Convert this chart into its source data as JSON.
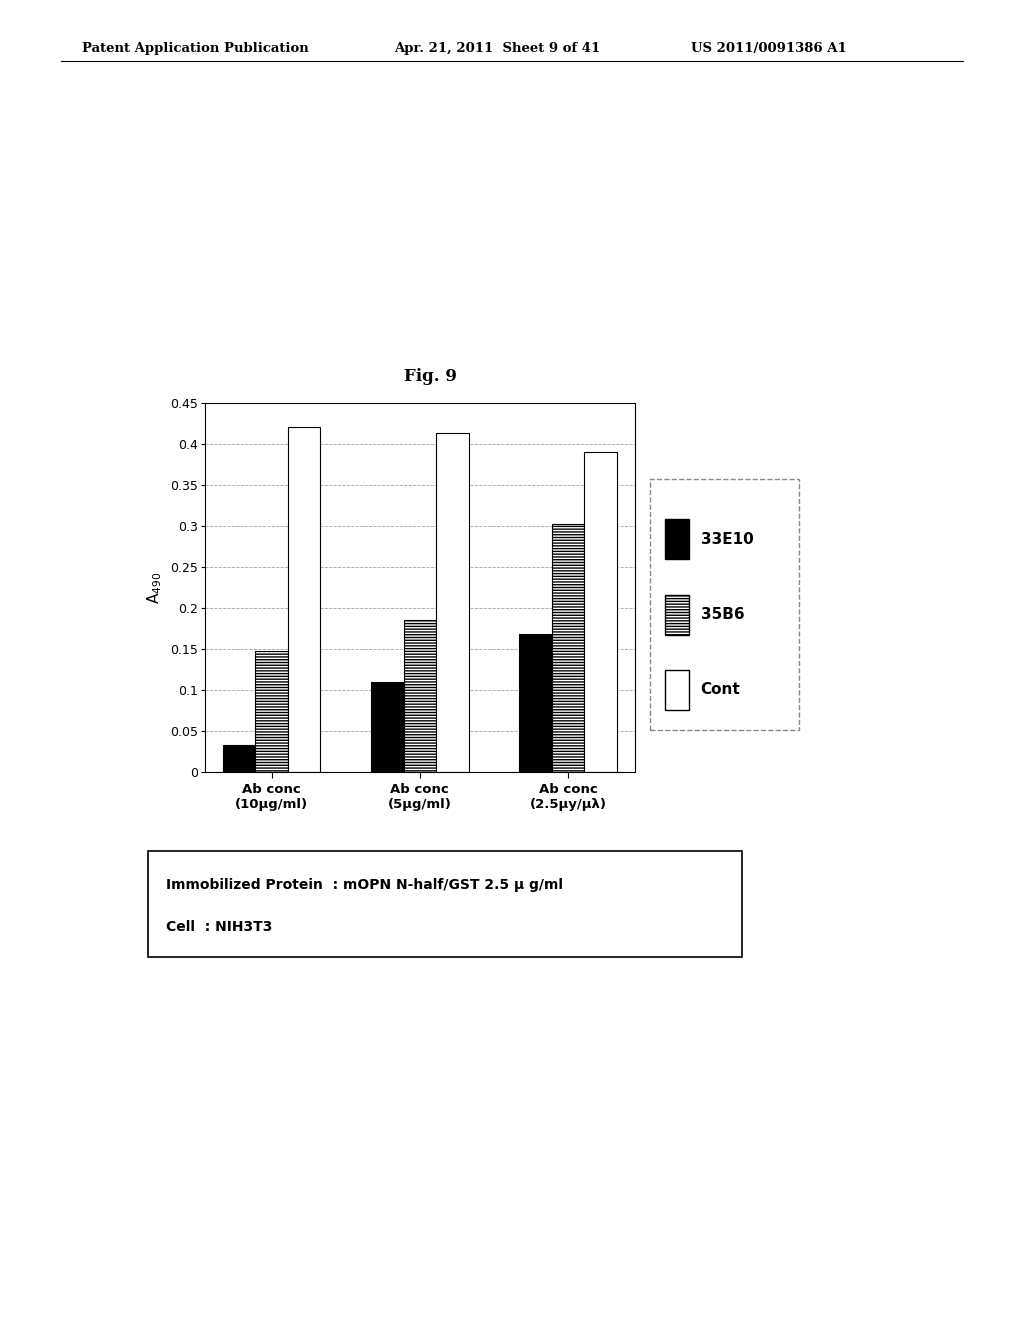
{
  "title": "Fig. 9",
  "header_left": "Patent Application Publication",
  "header_center": "Apr. 21, 2011  Sheet 9 of 41",
  "header_right": "US 2011/0091386 A1",
  "ylabel": "A$_{490}$",
  "groups": [
    "Ab conc\n(10μg/ml)",
    "Ab conc\n(5μg/ml)",
    "Ab conc\n(2.5μy/μλ)"
  ],
  "series_labels": [
    "33E10",
    "35B6",
    "Cont"
  ],
  "values": [
    [
      0.033,
      0.11,
      0.168
    ],
    [
      0.148,
      0.185,
      0.302
    ],
    [
      0.42,
      0.413,
      0.39
    ]
  ],
  "ylim": [
    0,
    0.45
  ],
  "yticks": [
    0,
    0.05,
    0.1,
    0.15,
    0.2,
    0.25,
    0.3,
    0.35,
    0.4,
    0.45
  ],
  "annotation_line1": "Immobilized Protein  : mOPN N-half/GST 2.5 μ g/ml",
  "annotation_line2": "Cell  : NIH3T3",
  "background_color": "#ffffff"
}
